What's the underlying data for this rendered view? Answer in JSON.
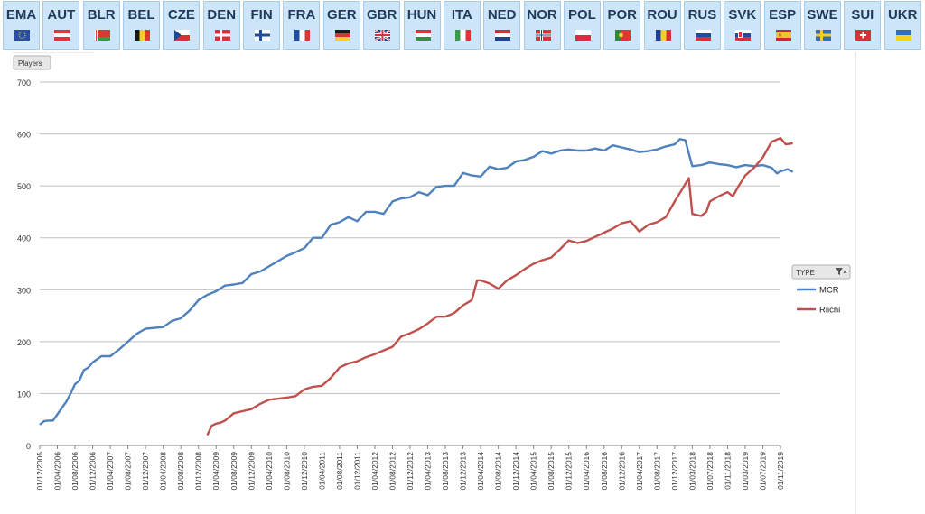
{
  "filter_tabs": [
    {
      "code": "EMA",
      "flag": "flag-ema"
    },
    {
      "code": "AUT",
      "flag": "flag-aut"
    },
    {
      "code": "BLR",
      "flag": "flag-blr"
    },
    {
      "code": "BEL",
      "flag": "flag-bel"
    },
    {
      "code": "CZE",
      "flag": "flag-cze"
    },
    {
      "code": "DEN",
      "flag": "flag-den"
    },
    {
      "code": "FIN",
      "flag": "flag-fin"
    },
    {
      "code": "FRA",
      "flag": "flag-fra"
    },
    {
      "code": "GER",
      "flag": "flag-ger"
    },
    {
      "code": "GBR",
      "flag": "flag-gbr"
    },
    {
      "code": "HUN",
      "flag": "flag-hun"
    },
    {
      "code": "ITA",
      "flag": "flag-ita"
    },
    {
      "code": "NED",
      "flag": "flag-ned"
    },
    {
      "code": "NOR",
      "flag": "flag-nor"
    },
    {
      "code": "POL",
      "flag": "flag-pol"
    },
    {
      "code": "POR",
      "flag": "flag-por"
    },
    {
      "code": "ROU",
      "flag": "flag-rou"
    },
    {
      "code": "RUS",
      "flag": "flag-rus"
    },
    {
      "code": "SVK",
      "flag": "flag-svk"
    },
    {
      "code": "ESP",
      "flag": "flag-esp"
    },
    {
      "code": "SWE",
      "flag": "flag-swe"
    },
    {
      "code": "SUI",
      "flag": "flag-sui"
    },
    {
      "code": "UKR",
      "flag": "flag-ukr"
    }
  ],
  "chart_controls": {
    "field_button": "Players",
    "legend_title": "TYPE"
  },
  "colors": {
    "tab_bg": "#cde5f8",
    "mcr": "#4f81bd",
    "riichi": "#c0504d",
    "grid": "#bfbfbf"
  },
  "chart_data": {
    "type": "line",
    "ylim": [
      0,
      700
    ],
    "y_ticks": [
      0,
      100,
      200,
      300,
      400,
      500,
      600,
      700
    ],
    "x_ticks": [
      "01/12/2005",
      "01/04/2006",
      "01/08/2006",
      "01/12/2006",
      "01/04/2007",
      "01/08/2007",
      "01/12/2007",
      "01/04/2008",
      "01/08/2008",
      "01/12/2008",
      "01/04/2009",
      "01/08/2009",
      "01/12/2009",
      "01/04/2010",
      "01/08/2010",
      "01/12/2010",
      "01/04/2011",
      "01/08/2011",
      "01/12/2011",
      "01/04/2012",
      "01/08/2012",
      "01/12/2012",
      "01/04/2013",
      "01/08/2013",
      "01/12/2013",
      "01/04/2014",
      "01/08/2014",
      "01/12/2014",
      "01/04/2015",
      "01/08/2015",
      "01/12/2015",
      "01/04/2016",
      "01/08/2016",
      "01/12/2016",
      "01/04/2017",
      "01/08/2017",
      "01/12/2017",
      "01/03/2018",
      "01/07/2018",
      "01/11/2018",
      "01/03/2019",
      "01/07/2019",
      "01/11/2019"
    ],
    "legend_position": "right",
    "grid": true,
    "series": [
      {
        "name": "MCR",
        "color": "#4f81bd",
        "points": [
          [
            0,
            40
          ],
          [
            0.25,
            47
          ],
          [
            0.5,
            48
          ],
          [
            0.75,
            48
          ],
          [
            1,
            60
          ],
          [
            1.25,
            72
          ],
          [
            1.5,
            84
          ],
          [
            1.75,
            100
          ],
          [
            2,
            118
          ],
          [
            2.25,
            125
          ],
          [
            2.5,
            145
          ],
          [
            2.75,
            150
          ],
          [
            3,
            160
          ],
          [
            3.5,
            172
          ],
          [
            4,
            172
          ],
          [
            4.5,
            185
          ],
          [
            5,
            200
          ],
          [
            5.5,
            215
          ],
          [
            6,
            225
          ],
          [
            7,
            228
          ],
          [
            7.5,
            240
          ],
          [
            8,
            245
          ],
          [
            8.5,
            260
          ],
          [
            9,
            280
          ],
          [
            9.5,
            290
          ],
          [
            10,
            297
          ],
          [
            10.5,
            308
          ],
          [
            11,
            310
          ],
          [
            11.5,
            313
          ],
          [
            12,
            330
          ],
          [
            12.5,
            335
          ],
          [
            13,
            345
          ],
          [
            13.5,
            355
          ],
          [
            14,
            365
          ],
          [
            14.5,
            372
          ],
          [
            15,
            380
          ],
          [
            15.5,
            400
          ],
          [
            16,
            400
          ],
          [
            16.5,
            425
          ],
          [
            17,
            430
          ],
          [
            17.5,
            440
          ],
          [
            18,
            432
          ],
          [
            18.5,
            450
          ],
          [
            19,
            450
          ],
          [
            19.5,
            446
          ],
          [
            20,
            470
          ],
          [
            20.5,
            476
          ],
          [
            21,
            478
          ],
          [
            21.5,
            488
          ],
          [
            22,
            482
          ],
          [
            22.5,
            498
          ],
          [
            23,
            500
          ],
          [
            23.5,
            500
          ],
          [
            24,
            525
          ],
          [
            24.5,
            520
          ],
          [
            25,
            518
          ],
          [
            25.5,
            537
          ],
          [
            26,
            532
          ],
          [
            26.5,
            535
          ],
          [
            27,
            547
          ],
          [
            27.5,
            550
          ],
          [
            28,
            556
          ],
          [
            28.5,
            567
          ],
          [
            29,
            562
          ],
          [
            29.5,
            568
          ],
          [
            30,
            570
          ],
          [
            30.5,
            568
          ],
          [
            31,
            568
          ],
          [
            31.5,
            572
          ],
          [
            32,
            568
          ],
          [
            32.5,
            578
          ],
          [
            33,
            574
          ],
          [
            33.5,
            570
          ],
          [
            34,
            565
          ],
          [
            34.5,
            567
          ],
          [
            35,
            570
          ],
          [
            35.5,
            576
          ],
          [
            36,
            580
          ],
          [
            36.3,
            590
          ],
          [
            36.6,
            588
          ],
          [
            37,
            538
          ],
          [
            37.5,
            540
          ],
          [
            38,
            545
          ],
          [
            38.5,
            542
          ],
          [
            39,
            540
          ],
          [
            39.5,
            536
          ],
          [
            40,
            540
          ],
          [
            40.5,
            538
          ],
          [
            41,
            540
          ],
          [
            41.5,
            535
          ],
          [
            41.8,
            524
          ],
          [
            42,
            528
          ],
          [
            42.4,
            532
          ],
          [
            42.7,
            527
          ]
        ]
      },
      {
        "name": "Riichi",
        "color": "#c0504d",
        "points": [
          [
            9.5,
            20
          ],
          [
            9.75,
            38
          ],
          [
            10,
            42
          ],
          [
            10.25,
            44
          ],
          [
            10.5,
            48
          ],
          [
            11,
            62
          ],
          [
            11.5,
            66
          ],
          [
            12,
            70
          ],
          [
            12.5,
            80
          ],
          [
            13,
            88
          ],
          [
            13.5,
            90
          ],
          [
            14,
            92
          ],
          [
            14.5,
            95
          ],
          [
            15,
            108
          ],
          [
            15.5,
            113
          ],
          [
            16,
            115
          ],
          [
            16.5,
            130
          ],
          [
            17,
            150
          ],
          [
            17.5,
            158
          ],
          [
            18,
            162
          ],
          [
            18.5,
            170
          ],
          [
            19,
            176
          ],
          [
            19.5,
            183
          ],
          [
            20,
            190
          ],
          [
            20.5,
            210
          ],
          [
            21,
            216
          ],
          [
            21.5,
            224
          ],
          [
            22,
            235
          ],
          [
            22.5,
            248
          ],
          [
            23,
            248
          ],
          [
            23.5,
            255
          ],
          [
            24,
            270
          ],
          [
            24.5,
            280
          ],
          [
            24.8,
            318
          ],
          [
            25,
            318
          ],
          [
            25.5,
            312
          ],
          [
            26,
            302
          ],
          [
            26.5,
            318
          ],
          [
            27,
            328
          ],
          [
            27.5,
            340
          ],
          [
            28,
            350
          ],
          [
            28.5,
            357
          ],
          [
            29,
            362
          ],
          [
            29.5,
            378
          ],
          [
            30,
            395
          ],
          [
            30.5,
            390
          ],
          [
            31,
            394
          ],
          [
            31.5,
            402
          ],
          [
            32,
            410
          ],
          [
            32.5,
            418
          ],
          [
            33,
            428
          ],
          [
            33.5,
            432
          ],
          [
            34,
            412
          ],
          [
            34.5,
            425
          ],
          [
            35,
            430
          ],
          [
            35.5,
            440
          ],
          [
            36,
            470
          ],
          [
            36.4,
            492
          ],
          [
            36.8,
            515
          ],
          [
            37,
            446
          ],
          [
            37.5,
            442
          ],
          [
            37.8,
            450
          ],
          [
            38,
            470
          ],
          [
            38.5,
            480
          ],
          [
            39,
            488
          ],
          [
            39.3,
            480
          ],
          [
            39.6,
            498
          ],
          [
            40,
            520
          ],
          [
            40.5,
            535
          ],
          [
            41,
            555
          ],
          [
            41.5,
            585
          ],
          [
            42,
            592
          ],
          [
            42.3,
            580
          ],
          [
            42.7,
            582
          ]
        ]
      }
    ]
  }
}
